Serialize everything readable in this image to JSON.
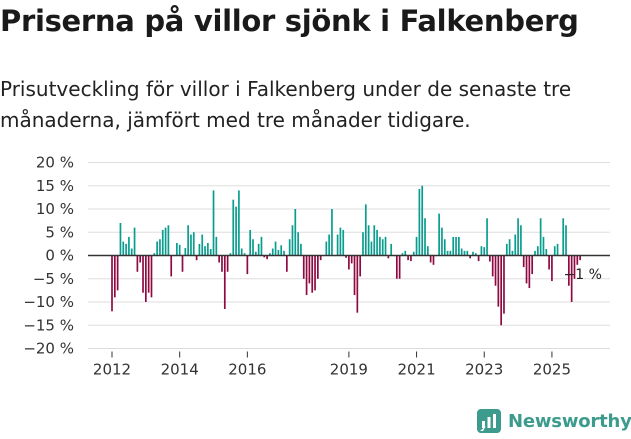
{
  "header": {
    "title": "Priserna på villor sjönk i Falkenberg",
    "subtitle": "Prisutveckling för villor i Falkenberg under de senaste tre månaderna, jämfört med tre månader tidigare."
  },
  "brand": {
    "name": "Newsworthy",
    "icon": "newsworthy-logo-icon",
    "color": "#3c9b8d"
  },
  "colors": {
    "positive": "#0a9d8f",
    "negative": "#8e0b42",
    "zero_line": "#333333",
    "grid": "#dddddd"
  },
  "chart_data": {
    "type": "bar",
    "title": "Priserna på villor sjönk i Falkenberg",
    "ylabel": "",
    "xlabel": "",
    "ylim": [
      -20,
      20
    ],
    "y_ticks": [
      20,
      15,
      10,
      5,
      0,
      -5,
      -10,
      -15,
      -20
    ],
    "y_tick_labels": [
      "20 %",
      "15 %",
      "10 %",
      "5 %",
      "0 %",
      "−5 %",
      "−10 %",
      "−15 %",
      "−20 %"
    ],
    "x_ticks": [
      {
        "label": "2012",
        "index": 0
      },
      {
        "label": "2014",
        "index": 24
      },
      {
        "label": "2016",
        "index": 48
      },
      {
        "label": "2019",
        "index": 84
      },
      {
        "label": "2021",
        "index": 108
      },
      {
        "label": "2023",
        "index": 132
      },
      {
        "label": "2025",
        "index": 156
      }
    ],
    "annotation": {
      "text": "−1 %",
      "index": 158
    },
    "values": [
      -12,
      -9,
      -7.5,
      7,
      3,
      2.5,
      4,
      1.5,
      6,
      -3.5,
      -1.5,
      -8,
      -10,
      -8,
      -9,
      0.5,
      3,
      3.5,
      5.5,
      6,
      6.5,
      -4.5,
      0,
      2.7,
      2.3,
      -3.5,
      1.6,
      6.5,
      4.5,
      5,
      -1,
      2.5,
      4.5,
      2,
      2.7,
      1.4,
      14,
      4,
      -1.5,
      -3.5,
      -11.5,
      -3.5,
      0.5,
      12,
      10.5,
      14,
      1.5,
      0.5,
      -4,
      5.5,
      3.5,
      0.8,
      2.5,
      4,
      -0.4,
      -0.8,
      0.5,
      1.5,
      3,
      1.2,
      2.2,
      1,
      -3.5,
      3.5,
      6.5,
      10,
      5,
      2.5,
      -5,
      -8.5,
      -6,
      -8,
      -7.5,
      -5,
      -1,
      0,
      3,
      4.5,
      10,
      0,
      4.5,
      6,
      5.5,
      -0.5,
      -3,
      -1.7,
      -8.5,
      -12.3,
      -4.5,
      5,
      11,
      6.5,
      3,
      6.5,
      5.5,
      4,
      3.5,
      4,
      -0.6,
      2.5,
      0,
      -5,
      -5,
      0.5,
      1,
      -1,
      -1.2,
      0.8,
      4,
      14.3,
      15,
      8,
      2,
      -1.5,
      -2,
      0,
      9,
      6,
      3.5,
      1,
      1,
      4,
      4,
      4,
      1.5,
      1,
      1,
      -0.6,
      0.8,
      0.5,
      -1.2,
      2,
      1.8,
      8,
      -1.3,
      -4.5,
      -6.5,
      -11,
      -15,
      -12.5,
      2.5,
      3.5,
      1,
      4.5,
      8,
      6.5,
      -2.5,
      -6,
      -7,
      -4,
      1,
      2,
      8,
      4,
      1.4,
      -3,
      -5.5,
      2,
      2.5,
      0,
      8,
      6.5,
      -6.5,
      -10,
      -5,
      -2,
      -1
    ]
  }
}
